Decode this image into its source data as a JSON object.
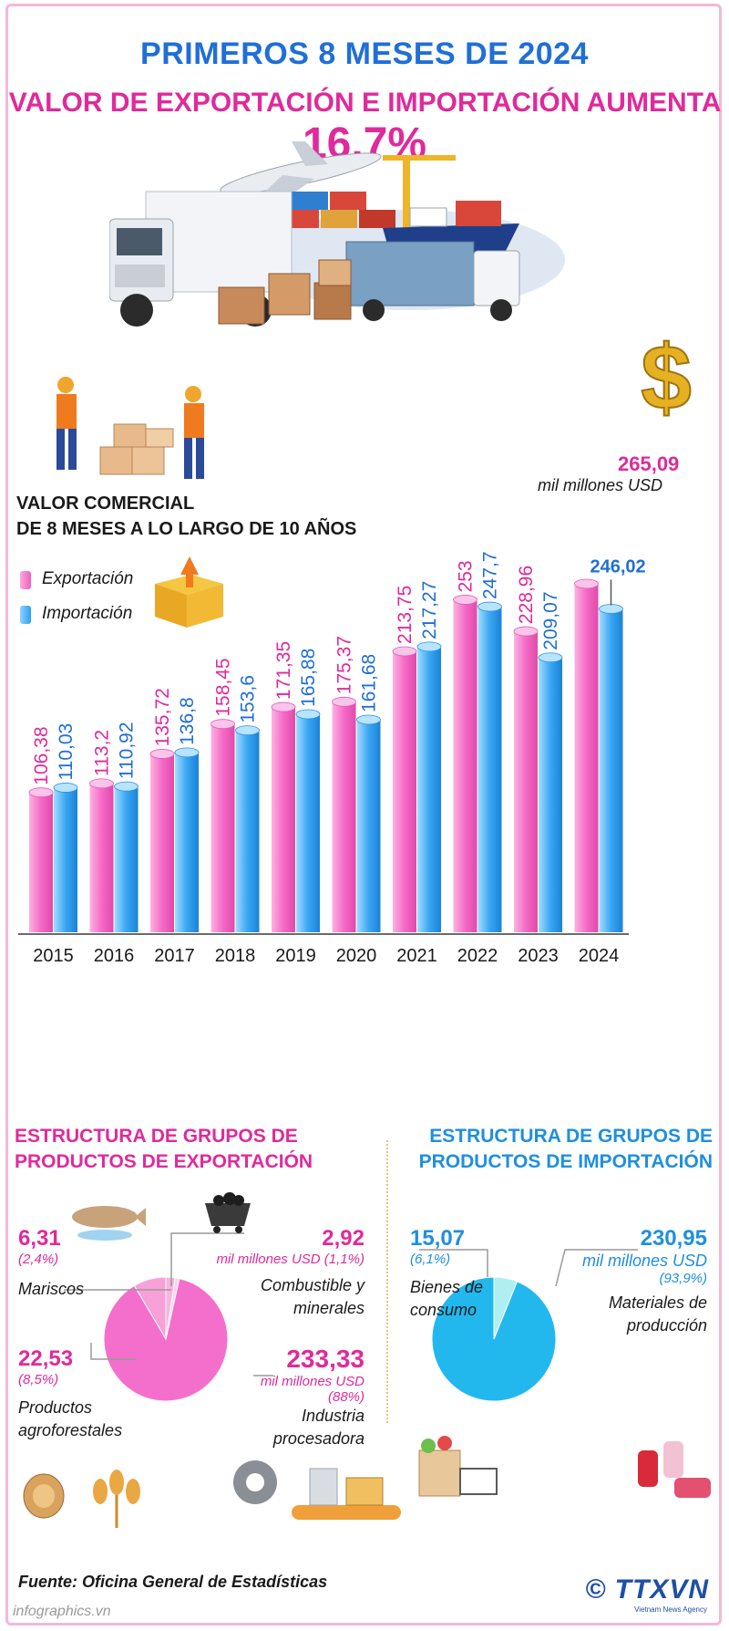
{
  "header": {
    "title_line1": "PRIMEROS 8 MESES DE 2024",
    "title_line2": "VALOR DE EXPORTACIÓN E IMPORTACIÓN AUMENTA",
    "title_highlight": "16,7%"
  },
  "chart_section": {
    "title_line1": "VALOR COMERCIAL",
    "title_line2": "DE 8 MESES A LO LARGO DE 10 AÑOS",
    "unit": "mil millones USD"
  },
  "chart_data": {
    "type": "bar",
    "title": "VALOR COMERCIAL DE 8 MESES A LO LARGO DE 10 AÑOS",
    "categories": [
      "2015",
      "2016",
      "2017",
      "2018",
      "2019",
      "2020",
      "2021",
      "2022",
      "2023",
      "2024"
    ],
    "series": [
      {
        "name": "Exportación",
        "color": "#f25fc0",
        "labels": [
          "106,38",
          "113,2",
          "135,72",
          "158,45",
          "171,35",
          "175,37",
          "213,75",
          "253",
          "228,96",
          "265,09"
        ],
        "values": [
          106.38,
          113.2,
          135.72,
          158.45,
          171.35,
          175.37,
          213.75,
          253,
          228.96,
          265.09
        ]
      },
      {
        "name": "Importación",
        "color": "#2f9ef0",
        "labels": [
          "110,03",
          "110,92",
          "136,8",
          "153,6",
          "165,88",
          "161,68",
          "217,27",
          "247,7",
          "209,07",
          "246,02"
        ],
        "values": [
          110.03,
          110.92,
          136.8,
          153.6,
          165.88,
          161.68,
          217.27,
          247.7,
          209.07,
          246.02
        ]
      }
    ],
    "ylim": [
      0,
      265.09
    ],
    "legend": "top-left",
    "grid": false
  },
  "export_structure": {
    "title_line1": "ESTRUCTURA DE GRUPOS DE",
    "title_line2": "PRODUCTOS DE EXPORTACIÓN",
    "items": [
      {
        "value": "6,31",
        "pct": "(2,4%)",
        "label": "Mariscos",
        "share": 2.4
      },
      {
        "value": "2,92",
        "pct": "mil millones USD (1,1%)",
        "label_line1": "Combustible y",
        "label_line2": "minerales",
        "share": 1.1
      },
      {
        "value": "22,53",
        "pct": "(8,5%)",
        "label_line1": "Productos",
        "label_line2": "agroforestales",
        "share": 8.5
      },
      {
        "value": "233,33",
        "unit": "mil millones USD",
        "pct": "(88%)",
        "label_line1": "Industria",
        "label_line2": "procesadora",
        "share": 88
      }
    ]
  },
  "import_structure": {
    "title_line1": "ESTRUCTURA DE GRUPOS DE",
    "title_line2": "PRODUCTOS DE IMPORTACIÓN",
    "items": [
      {
        "value": "15,07",
        "pct": "(6,1%)",
        "label_line1": "Bienes de",
        "label_line2": "consumo",
        "share": 6.1
      },
      {
        "value": "230,95",
        "unit": "mil millones USD",
        "pct": "(93,9%)",
        "label_line1": "Materiales de",
        "label_line2": "producción",
        "share": 93.9
      }
    ]
  },
  "footer": {
    "source": "Fuente: Oficina General de Estadísticas",
    "site": "infographics.vn",
    "logo_copyright": "©",
    "logo": "TTXVN",
    "logo_sub": "Vietnam News Agency"
  },
  "colors": {
    "title_blue": "#1f6fd6",
    "title_pink": "#e02a9b",
    "export_pink": "#f25fc0",
    "import_blue": "#2f9ef0"
  }
}
